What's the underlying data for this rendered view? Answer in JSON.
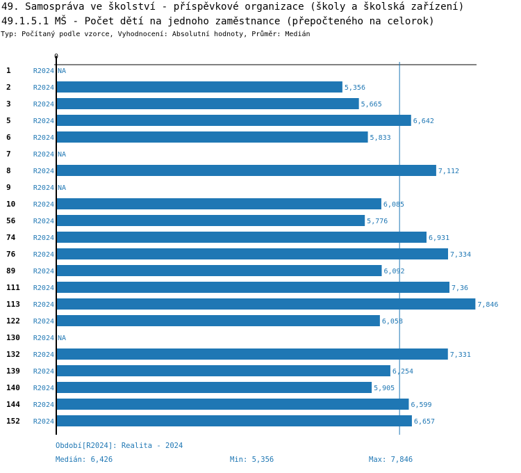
{
  "title": "49. Samospráva ve školství - příspěvkové organizace (školy a školská zařízení)",
  "subtitle": "49.1.5.1 MŠ - Počet dětí na jednoho zaměstnance (přepočteného na celorok)",
  "info": "Typ: Počítaný podle vzorce, Vyhodnocení: Absolutní hodnoty, Průměr: Medián",
  "chart_data": {
    "type": "bar",
    "orientation": "horizontal",
    "axis_zero_label": "0",
    "series_label": "R2024",
    "bar_color": "#1f77b4",
    "median": 6.426,
    "xlim": [
      0,
      7.9
    ],
    "categories": [
      "1",
      "2",
      "3",
      "5",
      "6",
      "7",
      "8",
      "9",
      "10",
      "56",
      "74",
      "76",
      "89",
      "111",
      "113",
      "122",
      "130",
      "132",
      "139",
      "140",
      "144",
      "152"
    ],
    "values": [
      null,
      5.356,
      5.665,
      6.642,
      5.833,
      null,
      7.112,
      null,
      6.085,
      5.776,
      6.931,
      7.334,
      6.092,
      7.36,
      7.846,
      6.058,
      null,
      7.331,
      6.254,
      5.905,
      6.599,
      6.657
    ],
    "labels": [
      "NA",
      "5,356",
      "5,665",
      "6,642",
      "5,833",
      "NA",
      "7,112",
      "NA",
      "6,085",
      "5,776",
      "6,931",
      "7,334",
      "6,092",
      "7,36",
      "7,846",
      "6,058",
      "NA",
      "7,331",
      "6,254",
      "5,905",
      "6,599",
      "6,657"
    ]
  },
  "footer": {
    "period": "Období[R2024]: Realita - 2024",
    "median": "Medián: 6,426",
    "min": "Min: 5,356",
    "max": "Max: 7,846"
  }
}
